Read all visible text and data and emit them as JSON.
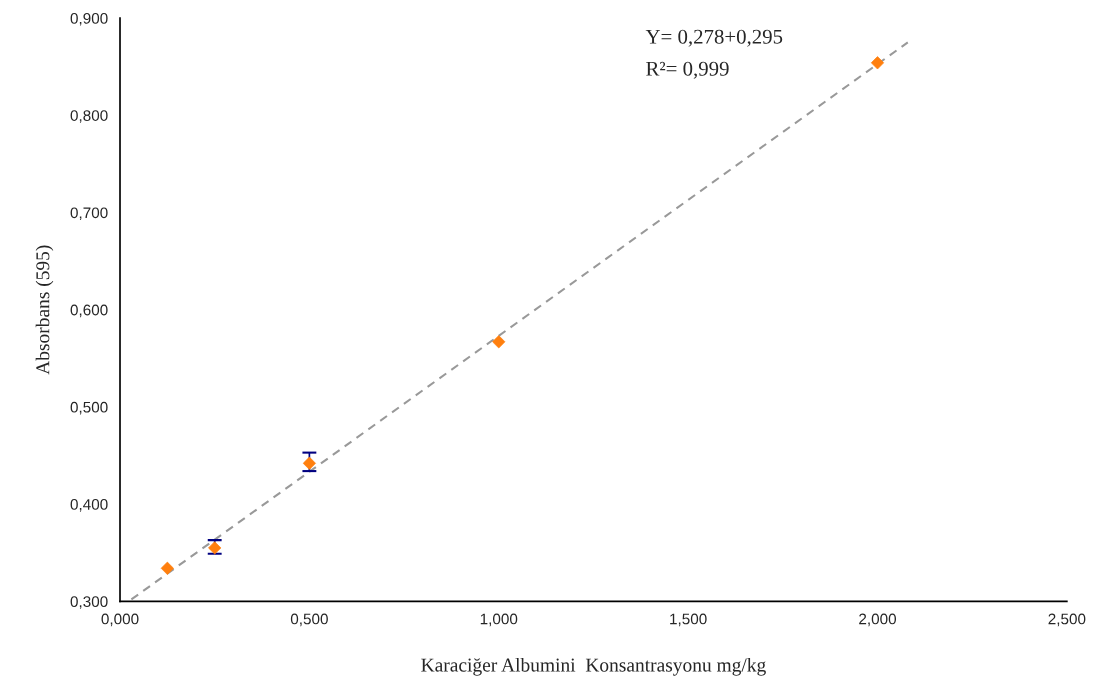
{
  "chart_data": {
    "type": "scatter",
    "xlabel": "Karaciğer Albumini  Konsantrasyonu mg/kg",
    "ylabel": "Absorbans (595)",
    "annotations": [
      "Y= 0,278+0,295",
      "R²= 0,999"
    ],
    "series": [
      {
        "color": "#ff7f0e",
        "marker": "diamond",
        "x": [
          0.125,
          0.25,
          0.5,
          1.0,
          2.0
        ],
        "values": [
          0.334,
          0.355,
          0.442,
          0.567,
          0.854
        ],
        "errors": [
          null,
          [
            0.349,
            0.363
          ],
          [
            0.434,
            0.453
          ],
          null,
          null
        ]
      },
      {
        "type": "line",
        "color": "#999999",
        "line_style": "dashed",
        "x": [
          0.03,
          2.08
        ],
        "values": [
          0.302,
          0.875
        ]
      }
    ],
    "xlim": [
      0,
      2.5
    ],
    "ylim": [
      0.3,
      0.9
    ],
    "xticks": [
      {
        "value": 0,
        "label": "0,000"
      },
      {
        "value": 0.5,
        "label": "0,500"
      },
      {
        "value": 1.0,
        "label": "1,000"
      },
      {
        "value": 1.5,
        "label": "1,500"
      },
      {
        "value": 2.0,
        "label": "2,000"
      },
      {
        "value": 2.5,
        "label": "2,500"
      }
    ],
    "yticks": [
      {
        "value": 0.3,
        "label": "0,300"
      },
      {
        "value": 0.4,
        "label": "0,400"
      },
      {
        "value": 0.5,
        "label": "0,500"
      },
      {
        "value": 0.6,
        "label": "0,600"
      },
      {
        "value": 0.7,
        "label": "0,700"
      },
      {
        "value": 0.8,
        "label": "0,800"
      },
      {
        "value": 0.9,
        "label": "0,900"
      }
    ],
    "grid": false,
    "legend": false
  }
}
